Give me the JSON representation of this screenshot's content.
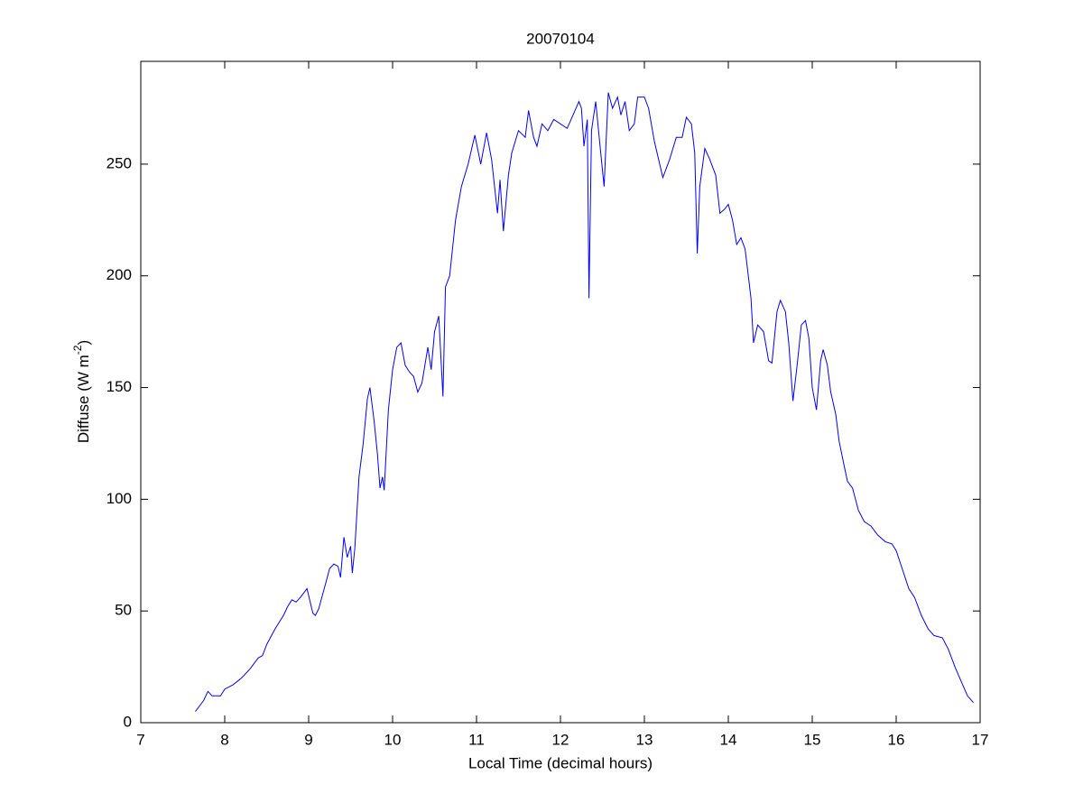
{
  "chart_data": {
    "type": "line",
    "title": "20070104",
    "xlabel": "Local Time (decimal hours)",
    "ylabel": [
      "Diffuse (W m",
      "-2",
      ")"
    ],
    "xlim": [
      7,
      17
    ],
    "ylim": [
      0,
      296
    ],
    "xticks": [
      7,
      8,
      9,
      10,
      11,
      12,
      13,
      14,
      15,
      16,
      17
    ],
    "yticks": [
      0,
      50,
      100,
      150,
      200,
      250
    ],
    "grid": false,
    "x": [
      7.65,
      7.75,
      7.8,
      7.85,
      7.95,
      8.0,
      8.1,
      8.2,
      8.3,
      8.4,
      8.45,
      8.5,
      8.6,
      8.7,
      8.75,
      8.8,
      8.85,
      8.9,
      8.98,
      9.05,
      9.08,
      9.12,
      9.2,
      9.25,
      9.3,
      9.35,
      9.38,
      9.42,
      9.46,
      9.5,
      9.52,
      9.55,
      9.6,
      9.65,
      9.7,
      9.73,
      9.78,
      9.82,
      9.85,
      9.88,
      9.9,
      9.95,
      10.0,
      10.05,
      10.1,
      10.15,
      10.2,
      10.25,
      10.3,
      10.35,
      10.42,
      10.46,
      10.5,
      10.55,
      10.6,
      10.63,
      10.68,
      10.75,
      10.82,
      10.9,
      10.98,
      11.05,
      11.12,
      11.18,
      11.25,
      11.28,
      11.32,
      11.38,
      11.42,
      11.5,
      11.58,
      11.62,
      11.68,
      11.72,
      11.78,
      11.85,
      11.92,
      12.0,
      12.08,
      12.15,
      12.22,
      12.25,
      12.28,
      12.32,
      12.34,
      12.37,
      12.42,
      12.48,
      12.52,
      12.57,
      12.62,
      12.68,
      12.72,
      12.77,
      12.82,
      12.88,
      12.92,
      13.0,
      13.05,
      13.12,
      13.22,
      13.3,
      13.38,
      13.45,
      13.5,
      13.56,
      13.6,
      13.63,
      13.66,
      13.72,
      13.78,
      13.85,
      13.9,
      13.96,
      14.0,
      14.05,
      14.1,
      14.15,
      14.2,
      14.27,
      14.3,
      14.35,
      14.42,
      14.48,
      14.52,
      14.58,
      14.62,
      14.68,
      14.72,
      14.77,
      14.82,
      14.87,
      14.92,
      14.96,
      15.0,
      15.05,
      15.1,
      15.13,
      15.18,
      15.22,
      15.28,
      15.32,
      15.38,
      15.42,
      15.48,
      15.55,
      15.62,
      15.7,
      15.78,
      15.87,
      15.95,
      16.0,
      16.08,
      16.15,
      16.22,
      16.3,
      16.38,
      16.45,
      16.55,
      16.62,
      16.7,
      16.78,
      16.85,
      16.92
    ],
    "series": [
      {
        "name": "Diffuse",
        "color": "#0000ff",
        "values": [
          5,
          10,
          14,
          12,
          12,
          15,
          17,
          20,
          24,
          29,
          30,
          35,
          42,
          48,
          52,
          55,
          54,
          56,
          60,
          49,
          48,
          51,
          62,
          69,
          71,
          70,
          65,
          83,
          74,
          79,
          67,
          78,
          110,
          125,
          145,
          150,
          135,
          120,
          105,
          110,
          104,
          140,
          158,
          168,
          170,
          160,
          157,
          155,
          148,
          152,
          168,
          158,
          175,
          182,
          146,
          195,
          200,
          225,
          240,
          250,
          263,
          250,
          264,
          252,
          228,
          243,
          220,
          245,
          255,
          265,
          262,
          274,
          262,
          258,
          268,
          265,
          270,
          268,
          266,
          272,
          278,
          275,
          258,
          270,
          190,
          265,
          278,
          255,
          240,
          282,
          275,
          280,
          272,
          278,
          265,
          268,
          280,
          280,
          275,
          260,
          244,
          252,
          262,
          262,
          271,
          268,
          255,
          210,
          240,
          257,
          252,
          245,
          228,
          230,
          232,
          225,
          214,
          217,
          212,
          190,
          170,
          178,
          175,
          162,
          161,
          184,
          189,
          184,
          170,
          144,
          160,
          178,
          180,
          172,
          150,
          140,
          162,
          167,
          160,
          148,
          138,
          126,
          115,
          108,
          105,
          95,
          90,
          88,
          84,
          81,
          80,
          77,
          68,
          60,
          56,
          48,
          42,
          39,
          38,
          33,
          25,
          18,
          12,
          9
        ]
      }
    ]
  }
}
